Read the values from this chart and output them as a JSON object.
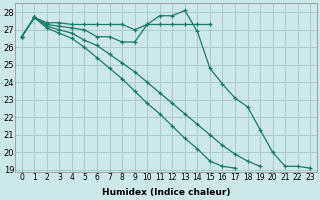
{
  "x_all": [
    0,
    1,
    2,
    3,
    4,
    5,
    6,
    7,
    8,
    9,
    10,
    11,
    12,
    13,
    14,
    15,
    16,
    17,
    18,
    19,
    20,
    21,
    22,
    23
  ],
  "line_flat": [
    26.6,
    27.7,
    27.4,
    27.4,
    27.3,
    27.3,
    27.3,
    27.3,
    27.3,
    27.0,
    27.3,
    27.3,
    27.3,
    27.3,
    27.3,
    27.3,
    null,
    null,
    null,
    null,
    null,
    null,
    null,
    null
  ],
  "line_peak": [
    26.6,
    27.7,
    27.3,
    27.2,
    27.1,
    27.0,
    26.6,
    26.6,
    26.3,
    26.3,
    27.3,
    27.8,
    27.8,
    28.1,
    26.9,
    24.8,
    23.9,
    23.1,
    22.6,
    21.3,
    20.0,
    19.2,
    19.2,
    19.1
  ],
  "line_mid1": [
    26.6,
    27.7,
    27.2,
    27.0,
    26.8,
    26.4,
    26.1,
    25.6,
    25.1,
    24.6,
    24.0,
    23.4,
    22.8,
    22.2,
    21.6,
    21.0,
    20.4,
    19.9,
    19.5,
    19.2,
    null,
    null,
    null,
    null
  ],
  "line_mid2": [
    26.6,
    27.7,
    27.1,
    26.8,
    26.5,
    26.0,
    25.4,
    24.8,
    24.2,
    23.5,
    22.8,
    22.2,
    21.5,
    20.8,
    20.2,
    19.5,
    19.2,
    19.1,
    null,
    null,
    null,
    null,
    null,
    null
  ],
  "bg_color": "#cce8e8",
  "grid_color": "#aacccc",
  "line_color": "#1a7a6a",
  "xlabel": "Humidex (Indice chaleur)",
  "ylim": [
    19,
    28.5
  ],
  "xlim": [
    -0.5,
    23.5
  ],
  "yticks": [
    19,
    20,
    21,
    22,
    23,
    24,
    25,
    26,
    27,
    28
  ],
  "xticks": [
    0,
    1,
    2,
    3,
    4,
    5,
    6,
    7,
    8,
    9,
    10,
    11,
    12,
    13,
    14,
    15,
    16,
    17,
    18,
    19,
    20,
    21,
    22,
    23
  ],
  "xlabel_fontsize": 6.5,
  "tick_fontsize": 5.5,
  "ytick_fontsize": 6.0
}
